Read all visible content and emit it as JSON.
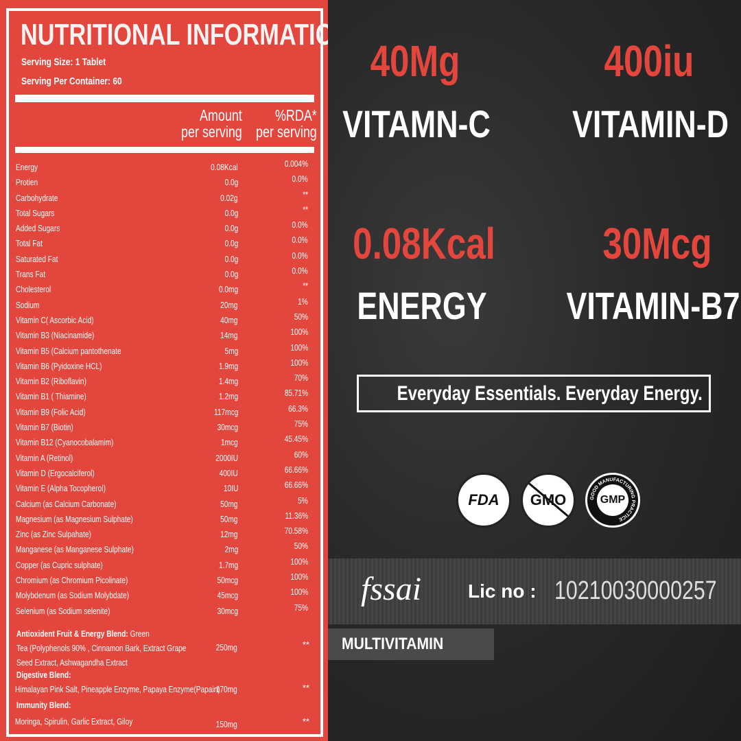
{
  "panel": {
    "title": "NUTRITIONAL INFORMATION",
    "serving_size": "Serving Size: 1 Tablet",
    "servings_per_container": "Serving Per Container: 60",
    "col_amount": [
      "Amount",
      "per serving"
    ],
    "col_rda": [
      "%RDA*",
      "per serving"
    ],
    "rows": [
      {
        "name": "Energy",
        "amount": "0.08Kcal",
        "rda": "0.004%"
      },
      {
        "name": "Protien",
        "amount": "0.0g",
        "rda": "0.0%"
      },
      {
        "name": "Carbohydrate",
        "amount": "0.02g",
        "rda": "**"
      },
      {
        "name": "Total Sugars",
        "amount": "0.0g",
        "rda": "**"
      },
      {
        "name": "Added Sugars",
        "amount": "0.0g",
        "rda": "0.0%"
      },
      {
        "name": "Total Fat",
        "amount": "0.0g",
        "rda": "0.0%"
      },
      {
        "name": "Saturated Fat",
        "amount": "0.0g",
        "rda": "0.0%"
      },
      {
        "name": "Trans Fat",
        "amount": "0.0g",
        "rda": "0.0%"
      },
      {
        "name": "Cholesterol",
        "amount": "0.0mg",
        "rda": "**"
      },
      {
        "name": "Sodium",
        "amount": "20mg",
        "rda": "1%"
      },
      {
        "name": "Vitamin C( Ascorbic Acid)",
        "amount": "40mg",
        "rda": "50%"
      },
      {
        "name": "Vitamin B3 (Niacinamide)",
        "amount": "14mg",
        "rda": "100%"
      },
      {
        "name": "Vitamin B5 (Calcium pantothenate",
        "amount": "5mg",
        "rda": "100%"
      },
      {
        "name": "Vitamin B6 (Pyidoxine HCL)",
        "amount": "1.9mg",
        "rda": "100%"
      },
      {
        "name": "Vitamin B2 (Riboflavin)",
        "amount": "1.4mg",
        "rda": "70%"
      },
      {
        "name": "Vitamin B1 ( Thiamine)",
        "amount": "1.2mg",
        "rda": "85.71%"
      },
      {
        "name": "Vitamin B9 (Folic Acid)",
        "amount": "117mcg",
        "rda": "66.3%"
      },
      {
        "name": "Vitamin B7 (Biotin)",
        "amount": "30mcg",
        "rda": "75%"
      },
      {
        "name": "Vitamin B12 (Cyanocobalamim)",
        "amount": "1mcg",
        "rda": "45.45%"
      },
      {
        "name": "Vitamin A (Retinol)",
        "amount": "2000IU",
        "rda": "60%"
      },
      {
        "name": "Vitamin D (Ergocalciferol)",
        "amount": "400IU",
        "rda": "66.66%"
      },
      {
        "name": "Vitamin E (Alpha Tocopherol)",
        "amount": "10IU",
        "rda": "66.66%"
      },
      {
        "name": "Calcium (as Calcium Carbonate)",
        "amount": "50mg",
        "rda": "5%"
      },
      {
        "name": "Magnesium (as Magnesium Sulphate)",
        "amount": "50mg",
        "rda": "11.36%"
      },
      {
        "name": "Zinc (as Zinc Sulpahate)",
        "amount": "12mg",
        "rda": "70.58%"
      },
      {
        "name": "Manganese (as Manganese Sulphate)",
        "amount": "2mg",
        "rda": "50%"
      },
      {
        "name": "Copper (as Cupric sulphate)",
        "amount": "1.7mg",
        "rda": "100%"
      },
      {
        "name": "Chromium (as Chromium Picolinate)",
        "amount": "50mcg",
        "rda": "100%"
      },
      {
        "name": "Molybdenum (as Sodium Molybdate)",
        "amount": "45mcg",
        "rda": "100%"
      },
      {
        "name": "Selenium (as Sodium selenite)",
        "amount": "30mcg",
        "rda": "75%"
      }
    ],
    "blends": [
      {
        "title": "Antioxident Fruit & Energy Blend:",
        "lines": [
          " Green",
          "Tea (Polyphenols 90% ,  Cinnamon Bark, Extract Grape",
          "Seed Extract, Ashwagandha Extract"
        ],
        "amount": "250mg",
        "rda": "**"
      },
      {
        "title": "Digestive Blend:",
        "lines": [
          "Himalayan Pink Salt, Pineapple Enzyme, Papaya Enzyme(Papain)"
        ],
        "amount": "170mg",
        "rda": "**"
      },
      {
        "title": "Immunity Blend:",
        "lines": [
          "Moringa, Spirulin, Garlic Extract, Giloy"
        ],
        "amount": "150mg",
        "rda": "**"
      }
    ]
  },
  "highlights": [
    {
      "value": "40Mg",
      "label": "VITAMN-C"
    },
    {
      "value": "400iu",
      "label": "VITAMIN-D"
    },
    {
      "value": "0.08Kcal",
      "label": "ENERGY"
    },
    {
      "value": "30Mcg",
      "label": "VITAMIN-B7"
    }
  ],
  "tagline": "Everyday Essentials. Everyday Energy.",
  "badges": [
    "FDA",
    "GMO",
    "GMP"
  ],
  "gmp_ring": "GOOD MANUFACTURING PRACTICE",
  "fssai": {
    "logo": "fssai",
    "lic_label": "Lic no :",
    "lic_number": "10210030000257"
  },
  "product_type": "MULTIVITAMIN",
  "colors": {
    "red": "#e2463d",
    "dark": "#262626",
    "white": "#ffffff"
  }
}
